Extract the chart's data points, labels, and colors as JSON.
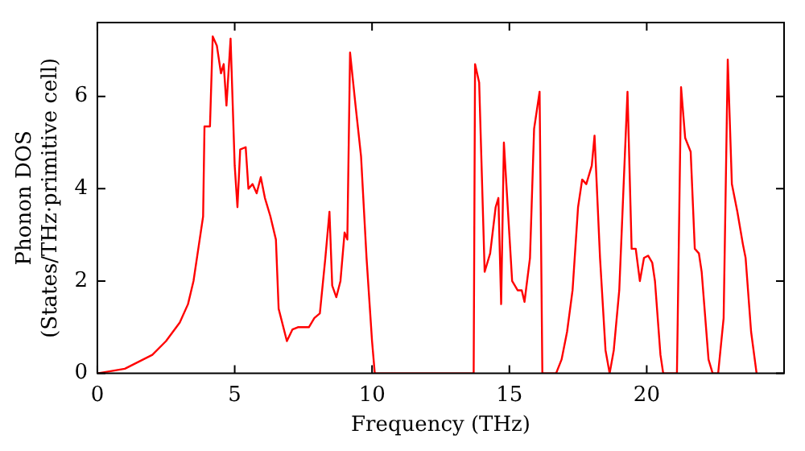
{
  "chart_data": {
    "type": "line",
    "xlabel": "Frequency (THz)",
    "ylabel": "Phonon DOS\n(States/THz·primitive cell)",
    "xlim": [
      0,
      25
    ],
    "xticks": [
      0,
      5,
      10,
      15,
      20
    ],
    "ylim": [
      0,
      7.6
    ],
    "yticks": [
      0,
      2,
      4,
      6
    ],
    "grid": false,
    "legend": false,
    "marker": "none",
    "line_style": "solid",
    "x": [
      0,
      1,
      2,
      2.5,
      3,
      3.3,
      3.5,
      3.7,
      3.85,
      3.9,
      4.1,
      4.2,
      4.35,
      4.5,
      4.6,
      4.7,
      4.85,
      5.0,
      5.1,
      5.2,
      5.4,
      5.5,
      5.65,
      5.8,
      5.95,
      6.1,
      6.3,
      6.5,
      6.6,
      6.9,
      7.1,
      7.3,
      7.7,
      7.9,
      8.1,
      8.3,
      8.45,
      8.55,
      8.7,
      8.85,
      9.0,
      9.1,
      9.2,
      9.4,
      9.6,
      9.8,
      10.0,
      10.1,
      13.7,
      13.75,
      13.9,
      14.1,
      14.3,
      14.5,
      14.6,
      14.7,
      14.8,
      15.0,
      15.1,
      15.3,
      15.45,
      15.55,
      15.75,
      15.9,
      16.1,
      16.2,
      16.7,
      16.9,
      17.1,
      17.3,
      17.5,
      17.65,
      17.8,
      18.0,
      18.1,
      18.3,
      18.5,
      18.65,
      18.8,
      19.0,
      19.3,
      19.45,
      19.6,
      19.75,
      19.9,
      20.05,
      20.2,
      20.3,
      20.5,
      20.6,
      21.1,
      21.25,
      21.4,
      21.6,
      21.75,
      21.9,
      22.0,
      22.25,
      22.4,
      22.6,
      22.8,
      22.95,
      23.1,
      23.3,
      23.5,
      23.6,
      23.8,
      24.0
    ],
    "series": [
      {
        "color": "#ff0000",
        "values": [
          0,
          0.1,
          0.4,
          0.7,
          1.1,
          1.5,
          2.0,
          2.8,
          3.4,
          5.35,
          5.35,
          7.3,
          7.1,
          6.5,
          6.7,
          5.8,
          7.25,
          4.5,
          3.6,
          4.85,
          4.9,
          4.0,
          4.1,
          3.9,
          4.25,
          3.8,
          3.4,
          2.9,
          1.4,
          0.7,
          0.95,
          1.0,
          1.0,
          1.2,
          1.3,
          2.5,
          3.5,
          1.9,
          1.65,
          2.0,
          3.05,
          2.9,
          6.95,
          5.8,
          4.7,
          2.5,
          0.7,
          0,
          0,
          6.7,
          6.3,
          2.2,
          2.6,
          3.6,
          3.8,
          1.5,
          5.0,
          3.0,
          2.0,
          1.8,
          1.8,
          1.55,
          2.5,
          5.3,
          6.1,
          0,
          0,
          0.3,
          0.9,
          1.8,
          3.6,
          4.2,
          4.1,
          4.5,
          5.15,
          2.5,
          0.5,
          0,
          0.5,
          1.8,
          6.1,
          2.7,
          2.7,
          2.0,
          2.5,
          2.55,
          2.4,
          2.0,
          0.4,
          0,
          0,
          6.2,
          5.1,
          4.8,
          2.7,
          2.6,
          2.2,
          0.3,
          0,
          0,
          1.2,
          6.8,
          4.1,
          3.5,
          2.8,
          2.5,
          0.9,
          0
        ]
      }
    ]
  }
}
